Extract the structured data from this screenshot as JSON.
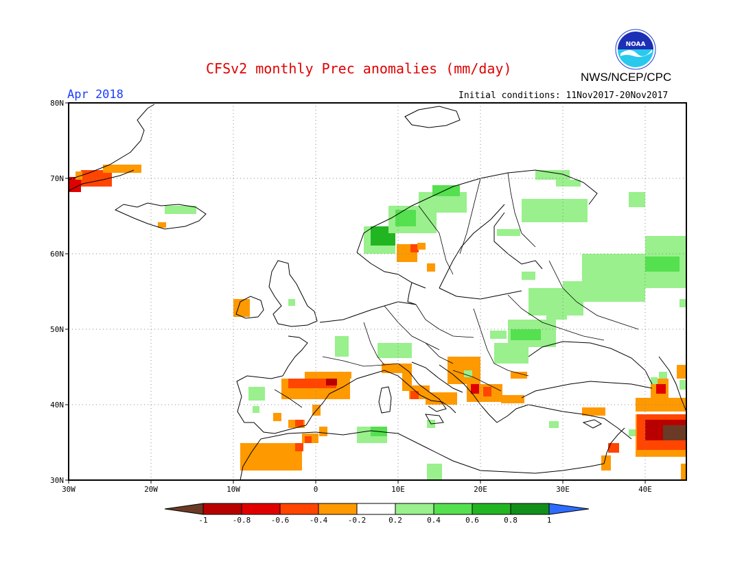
{
  "header": {
    "title": "CFSv2 monthly Prec anomalies (mm/day)",
    "agency": "NWS/NCEP/CPC",
    "month": "Apr 2018",
    "initial_conditions": "Initial conditions: 11Nov2017-20Nov2017",
    "logo_text": "NOAA"
  },
  "map": {
    "projection": "lat-lon",
    "lon_range": [
      -30,
      45
    ],
    "lat_range": [
      30,
      80
    ],
    "lat_ticks": [
      "80N",
      "70N",
      "60N",
      "50N",
      "40N",
      "30N"
    ],
    "lon_ticks": [
      "30W",
      "20W",
      "10W",
      "0",
      "10E",
      "20E",
      "30E",
      "40E"
    ],
    "grid": "dotted"
  },
  "colorbar": {
    "labels": [
      "-1",
      "-0.8",
      "-0.6",
      "-0.4",
      "-0.2",
      "0.2",
      "0.4",
      "0.6",
      "0.8",
      "1"
    ],
    "colors": [
      "#6b3a26",
      "#b80000",
      "#e00000",
      "#ff4500",
      "#ff9900",
      "#ffffff",
      "#99f08c",
      "#55e04f",
      "#22b522",
      "#118f1a",
      "#2e6cff"
    ]
  },
  "chart_data": {
    "type": "heatmap",
    "title": "CFSv2 monthly Prec anomalies (mm/day)",
    "units": "mm/day",
    "xlim": [
      -30,
      45
    ],
    "ylim": [
      30,
      80
    ],
    "levels": [
      -1,
      -0.8,
      -0.6,
      -0.4,
      -0.2,
      0.2,
      0.4,
      0.6,
      0.8,
      1
    ],
    "cells": [
      {
        "lon": -28,
        "lat": 69.5,
        "level": "-0.6"
      },
      {
        "lon": -26,
        "lat": 69.5,
        "level": "-0.6"
      },
      {
        "lon": -24,
        "lat": 71,
        "level": "-0.4"
      },
      {
        "lon": -22,
        "lat": 71,
        "level": "-0.4"
      },
      {
        "lon": -18,
        "lat": 65.5,
        "level": "0.4"
      },
      {
        "lon": -9,
        "lat": 52.5,
        "level": "-0.4"
      },
      {
        "lon": -3,
        "lat": 42.5,
        "level": "-0.4"
      },
      {
        "lon": 1,
        "lat": 42,
        "level": "-0.8"
      },
      {
        "lon": -7,
        "lat": 34,
        "level": "-0.4"
      },
      {
        "lon": 7,
        "lat": 63,
        "level": "0.8"
      },
      {
        "lon": 12,
        "lat": 60,
        "level": "-0.4"
      },
      {
        "lon": 26,
        "lat": 64.5,
        "level": "0.4"
      },
      {
        "lon": 40,
        "lat": 58,
        "level": "0.4"
      },
      {
        "lon": 43,
        "lat": 59,
        "level": "0.6"
      },
      {
        "lon": 25,
        "lat": 49,
        "level": "0.4"
      },
      {
        "lon": 18,
        "lat": 43.5,
        "level": "-0.4"
      },
      {
        "lon": 19.5,
        "lat": 41,
        "level": "-0.6"
      },
      {
        "lon": 15,
        "lat": 40.5,
        "level": "-0.4"
      },
      {
        "lon": 42,
        "lat": 41,
        "level": "-0.6"
      },
      {
        "lon": 43,
        "lat": 36,
        "level": "-0.8"
      },
      {
        "lon": 44.5,
        "lat": 35,
        "level": "-1"
      },
      {
        "lon": 36,
        "lat": 34,
        "level": "-0.6"
      },
      {
        "lon": 32,
        "lat": 38,
        "level": "-0.4"
      }
    ]
  }
}
